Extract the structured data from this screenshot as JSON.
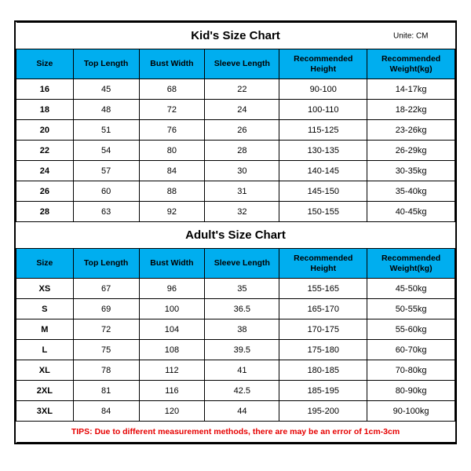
{
  "unit_label": "Unite: CM",
  "columns": [
    "Size",
    "Top Length",
    "Bust Width",
    "Sleeve Length",
    "Recommended Height",
    "Recommended Weight(kg)"
  ],
  "col_widths_pct": [
    13,
    15,
    15,
    17,
    20,
    20
  ],
  "header_bg": "#00aeef",
  "border_color": "#000000",
  "tips_color": "#e60000",
  "kids": {
    "title": "Kid's Size Chart",
    "rows": [
      [
        "16",
        "45",
        "68",
        "22",
        "90-100",
        "14-17kg"
      ],
      [
        "18",
        "48",
        "72",
        "24",
        "100-110",
        "18-22kg"
      ],
      [
        "20",
        "51",
        "76",
        "26",
        "115-125",
        "23-26kg"
      ],
      [
        "22",
        "54",
        "80",
        "28",
        "130-135",
        "26-29kg"
      ],
      [
        "24",
        "57",
        "84",
        "30",
        "140-145",
        "30-35kg"
      ],
      [
        "26",
        "60",
        "88",
        "31",
        "145-150",
        "35-40kg"
      ],
      [
        "28",
        "63",
        "92",
        "32",
        "150-155",
        "40-45kg"
      ]
    ]
  },
  "adults": {
    "title": "Adult's Size Chart",
    "rows": [
      [
        "XS",
        "67",
        "96",
        "35",
        "155-165",
        "45-50kg"
      ],
      [
        "S",
        "69",
        "100",
        "36.5",
        "165-170",
        "50-55kg"
      ],
      [
        "M",
        "72",
        "104",
        "38",
        "170-175",
        "55-60kg"
      ],
      [
        "L",
        "75",
        "108",
        "39.5",
        "175-180",
        "60-70kg"
      ],
      [
        "XL",
        "78",
        "112",
        "41",
        "180-185",
        "70-80kg"
      ],
      [
        "2XL",
        "81",
        "116",
        "42.5",
        "185-195",
        "80-90kg"
      ],
      [
        "3XL",
        "84",
        "120",
        "44",
        "195-200",
        "90-100kg"
      ]
    ]
  },
  "tips": "TIPS: Due to different measurement methods, there are may be an error of 1cm-3cm"
}
